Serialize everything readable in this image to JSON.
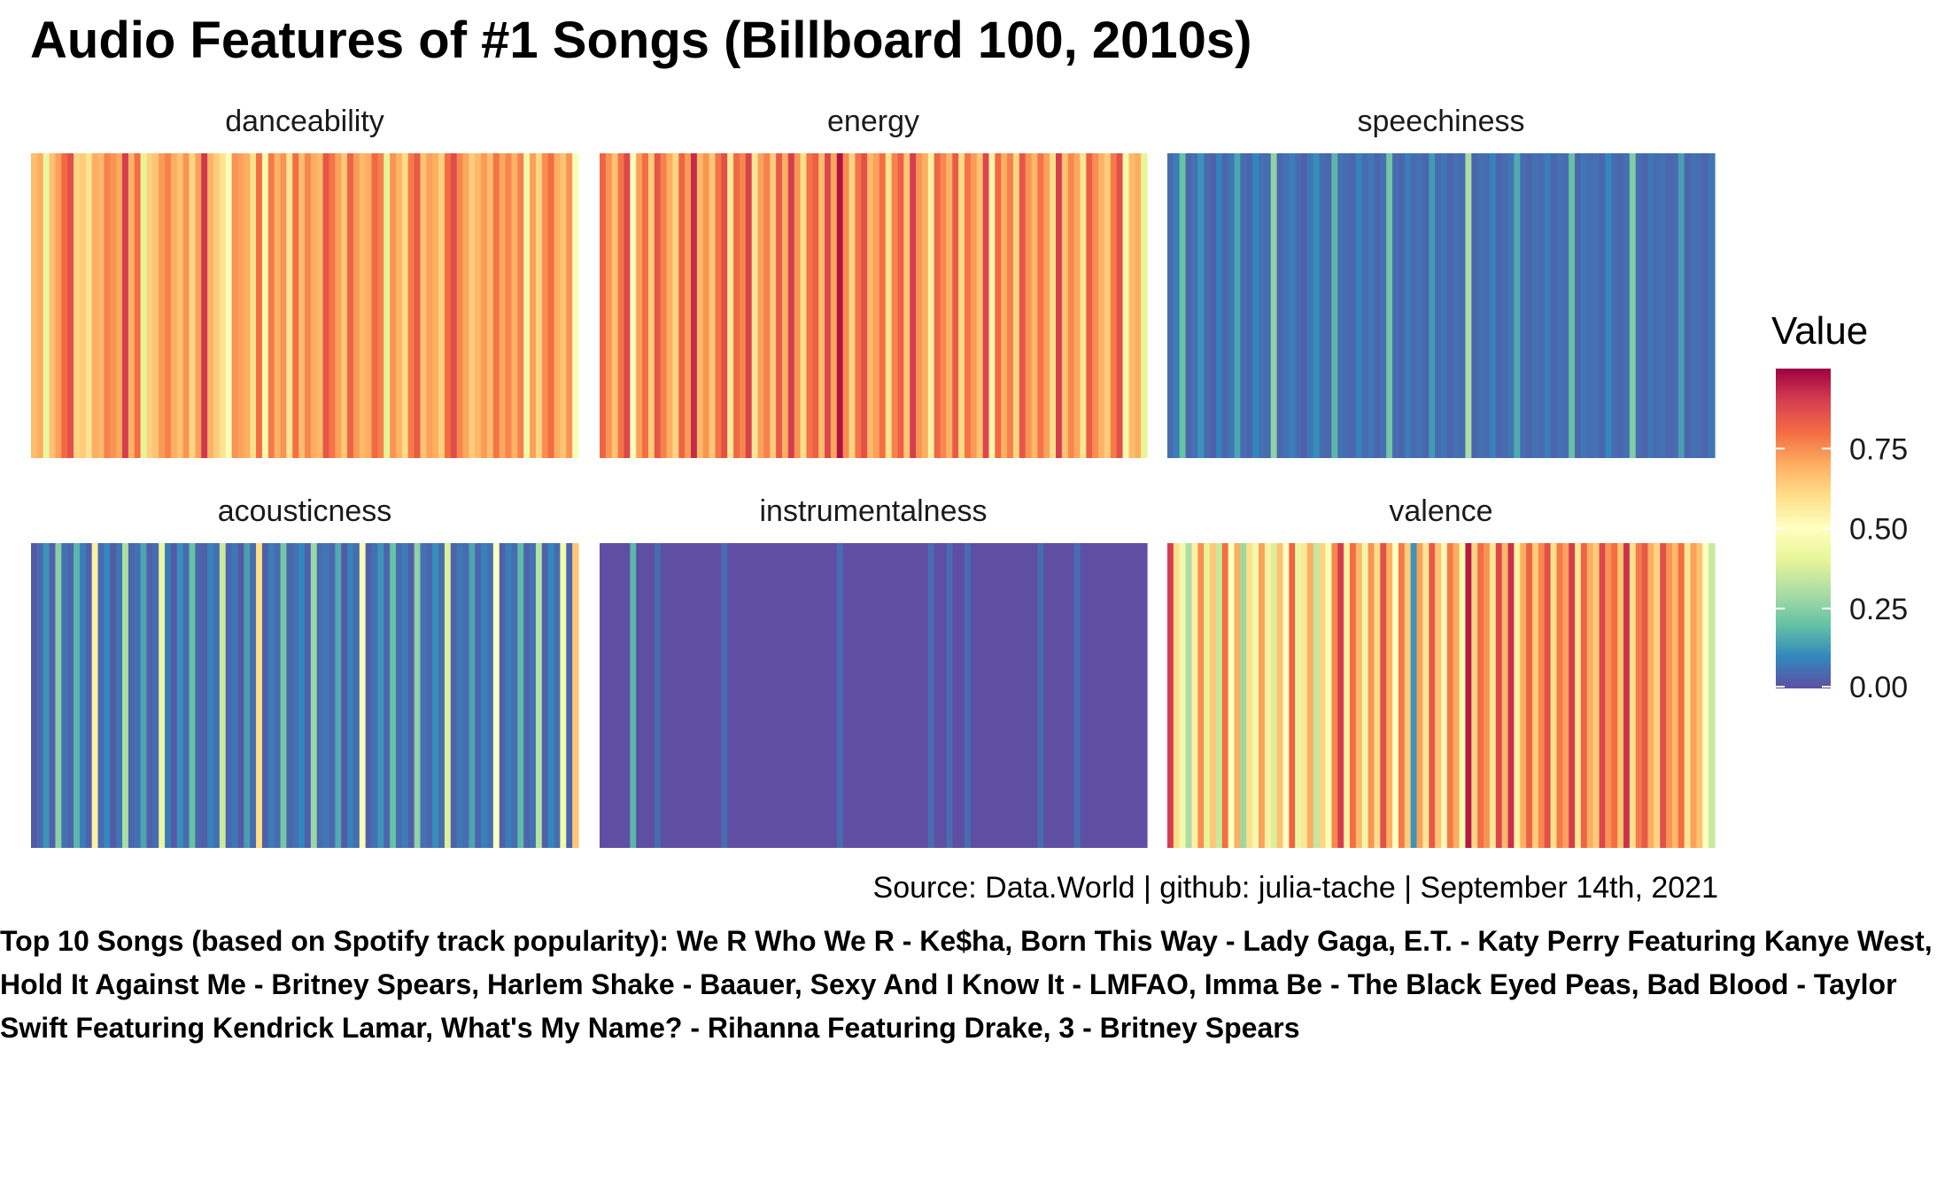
{
  "chart_data": {
    "type": "heatmap",
    "title": "Audio Features of #1 Songs (Billboard 100, 2010s)",
    "caption": "Source: Data.World | github: julia-tache | September 14th, 2021",
    "footnote": "Top 10 Songs (based on Spotify track popularity):  We R Who We R - Ke$ha, Born This Way - Lady Gaga, E.T. - Katy Perry Featuring Kanye West, Hold It Against Me - Britney Spears, Harlem Shake - Baauer, Sexy And I Know It - LMFAO, Imma Be - The Black Eyed Peas, Bad Blood - Taylor Swift Featuring Kendrick Lamar, What's My Name? - Rihanna Featuring Drake, 3 - Britney Spears",
    "legend": {
      "title": "Value",
      "placement": "right",
      "ticks": [
        "0.00",
        "0.25",
        "0.50",
        "0.75"
      ],
      "range": [
        0,
        1
      ]
    },
    "colors": {
      "palette": [
        "#5E4FA2",
        "#3288BD",
        "#66C2A5",
        "#ABDDA4",
        "#E6F598",
        "#FFFFBF",
        "#FEE08B",
        "#FDAE61",
        "#F46D43",
        "#D53E4F",
        "#9E0142"
      ]
    },
    "facets": [
      {
        "name": "danceability",
        "values": [
          0.67,
          0.7,
          0.42,
          0.66,
          0.72,
          0.81,
          0.86,
          0.62,
          0.64,
          0.59,
          0.7,
          0.68,
          0.77,
          0.74,
          0.71,
          0.9,
          0.69,
          0.8,
          0.4,
          0.63,
          0.66,
          0.73,
          0.77,
          0.7,
          0.66,
          0.74,
          0.62,
          0.72,
          0.91,
          0.69,
          0.64,
          0.59,
          0.51,
          0.74,
          0.72,
          0.7,
          0.6,
          0.8,
          0.46,
          0.78,
          0.69,
          0.74,
          0.58,
          0.8,
          0.67,
          0.76,
          0.7,
          0.68,
          0.85,
          0.79,
          0.72,
          0.65,
          0.82,
          0.73,
          0.68,
          0.7,
          0.81,
          0.77,
          0.4,
          0.74,
          0.69,
          0.61,
          0.78,
          0.84,
          0.66,
          0.72,
          0.7,
          0.63,
          0.8,
          0.87,
          0.76,
          0.71,
          0.64,
          0.68,
          0.73,
          0.67,
          0.79,
          0.71,
          0.76,
          0.69,
          0.77,
          0.45,
          0.72,
          0.62,
          0.75,
          0.8,
          0.7,
          0.66,
          0.74,
          0.48
        ]
      },
      {
        "name": "energy",
        "values": [
          0.82,
          0.74,
          0.66,
          0.79,
          0.88,
          0.51,
          0.72,
          0.8,
          0.64,
          0.85,
          0.77,
          0.7,
          0.62,
          0.82,
          0.73,
          0.93,
          0.68,
          0.74,
          0.65,
          0.79,
          0.86,
          0.57,
          0.81,
          0.76,
          0.89,
          0.58,
          0.72,
          0.77,
          0.64,
          0.84,
          0.7,
          0.9,
          0.74,
          0.6,
          0.79,
          0.83,
          0.67,
          0.88,
          0.71,
          0.97,
          0.75,
          0.62,
          0.79,
          0.86,
          0.68,
          0.72,
          0.8,
          0.59,
          0.77,
          0.83,
          0.65,
          0.9,
          0.74,
          0.7,
          0.55,
          0.82,
          0.76,
          0.69,
          0.84,
          0.61,
          0.79,
          0.73,
          0.66,
          0.88,
          0.54,
          0.81,
          0.7,
          0.77,
          0.62,
          0.85,
          0.74,
          0.68,
          0.79,
          0.72,
          0.6,
          0.9,
          0.66,
          0.76,
          0.71,
          0.58,
          0.83,
          0.75,
          0.69,
          0.64,
          0.78,
          0.86,
          0.45,
          0.67,
          0.7,
          0.4
        ]
      },
      {
        "name": "speechiness",
        "values": [
          0.05,
          0.08,
          0.2,
          0.04,
          0.06,
          0.12,
          0.05,
          0.03,
          0.09,
          0.04,
          0.07,
          0.15,
          0.05,
          0.04,
          0.1,
          0.06,
          0.05,
          0.26,
          0.04,
          0.06,
          0.08,
          0.05,
          0.03,
          0.07,
          0.11,
          0.05,
          0.04,
          0.18,
          0.06,
          0.05,
          0.04,
          0.09,
          0.05,
          0.07,
          0.04,
          0.06,
          0.22,
          0.05,
          0.04,
          0.08,
          0.05,
          0.06,
          0.04,
          0.13,
          0.05,
          0.07,
          0.04,
          0.06,
          0.05,
          0.3,
          0.04,
          0.06,
          0.05,
          0.09,
          0.04,
          0.05,
          0.07,
          0.16,
          0.05,
          0.04,
          0.06,
          0.05,
          0.08,
          0.04,
          0.06,
          0.05,
          0.2,
          0.04,
          0.07,
          0.05,
          0.06,
          0.04,
          0.1,
          0.05,
          0.04,
          0.06,
          0.24,
          0.05,
          0.04,
          0.07,
          0.05,
          0.06,
          0.04,
          0.05,
          0.14,
          0.04,
          0.06,
          0.05,
          0.04,
          0.07
        ]
      },
      {
        "name": "acousticness",
        "values": [
          0.02,
          0.05,
          0.12,
          0.03,
          0.25,
          0.06,
          0.04,
          0.18,
          0.08,
          0.03,
          0.55,
          0.05,
          0.1,
          0.02,
          0.07,
          0.3,
          0.04,
          0.06,
          0.15,
          0.03,
          0.05,
          0.42,
          0.08,
          0.02,
          0.11,
          0.05,
          0.2,
          0.04,
          0.03,
          0.09,
          0.06,
          0.35,
          0.04,
          0.07,
          0.02,
          0.14,
          0.05,
          0.6,
          0.03,
          0.08,
          0.05,
          0.22,
          0.04,
          0.06,
          0.1,
          0.03,
          0.28,
          0.05,
          0.07,
          0.04,
          0.16,
          0.02,
          0.09,
          0.05,
          0.48,
          0.03,
          0.06,
          0.12,
          0.04,
          0.2,
          0.05,
          0.08,
          0.03,
          0.26,
          0.06,
          0.04,
          0.11,
          0.05,
          0.38,
          0.03,
          0.07,
          0.05,
          0.15,
          0.04,
          0.09,
          0.06,
          0.5,
          0.03,
          0.08,
          0.05,
          0.19,
          0.04,
          0.06,
          0.32,
          0.03,
          0.1,
          0.05,
          0.45,
          0.04,
          0.65
        ]
      },
      {
        "name": "instrumentalness",
        "values": [
          0,
          0,
          0,
          0,
          0,
          0.18,
          0,
          0,
          0,
          0.05,
          0,
          0,
          0,
          0,
          0,
          0,
          0,
          0,
          0,
          0,
          0.05,
          0,
          0,
          0,
          0,
          0,
          0,
          0,
          0,
          0,
          0,
          0,
          0,
          0,
          0,
          0,
          0,
          0,
          0,
          0.05,
          0,
          0,
          0,
          0,
          0,
          0,
          0,
          0,
          0,
          0,
          0,
          0,
          0,
          0,
          0.05,
          0,
          0,
          0.05,
          0,
          0,
          0.05,
          0,
          0,
          0,
          0,
          0,
          0,
          0,
          0,
          0,
          0,
          0,
          0.05,
          0,
          0,
          0,
          0,
          0,
          0.05,
          0,
          0,
          0,
          0,
          0,
          0,
          0,
          0,
          0,
          0,
          0
        ]
      },
      {
        "name": "valence",
        "values": [
          0.9,
          0.6,
          0.45,
          0.3,
          0.55,
          0.75,
          0.4,
          0.65,
          0.35,
          0.8,
          0.5,
          0.7,
          0.28,
          0.6,
          0.45,
          0.72,
          0.55,
          0.38,
          0.66,
          0.5,
          0.82,
          0.42,
          0.58,
          0.7,
          0.34,
          0.62,
          0.48,
          0.76,
          0.9,
          0.55,
          0.8,
          0.68,
          0.44,
          0.74,
          0.6,
          0.86,
          0.7,
          0.5,
          0.78,
          0.64,
          0.12,
          0.72,
          0.58,
          0.84,
          0.66,
          0.52,
          0.78,
          0.7,
          0.46,
          0.96,
          0.62,
          0.8,
          0.74,
          0.58,
          0.88,
          0.68,
          0.92,
          0.54,
          0.7,
          0.82,
          0.64,
          0.76,
          0.86,
          0.6,
          0.78,
          0.72,
          0.9,
          0.58,
          0.82,
          0.7,
          0.64,
          0.88,
          0.74,
          0.8,
          0.66,
          0.92,
          0.6,
          0.78,
          0.84,
          0.7,
          0.62,
          0.86,
          0.74,
          0.68,
          0.8,
          0.58,
          0.72,
          0.66,
          0.5,
          0.35
        ]
      }
    ]
  }
}
